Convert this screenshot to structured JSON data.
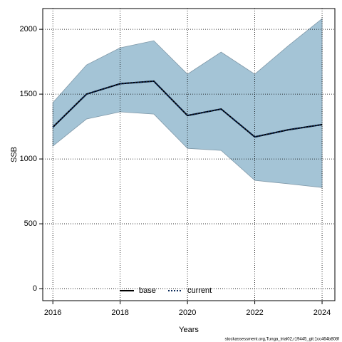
{
  "chart_data": {
    "type": "line",
    "x": [
      2016,
      2017,
      2018,
      2019,
      2020,
      2021,
      2022,
      2023,
      2024
    ],
    "series": [
      {
        "name": "base",
        "color": "#000000",
        "values": [
          1245,
          1500,
          1580,
          1600,
          1335,
          1385,
          1170,
          1225,
          1265
        ]
      },
      {
        "name": "current",
        "color": "#0b2a5a",
        "values": [
          1245,
          1500,
          1580,
          1600,
          1335,
          1385,
          1170,
          1225,
          1265
        ]
      }
    ],
    "interval": {
      "color": "#a4c4d6",
      "upper": [
        1434,
        1725,
        1857,
        1912,
        1654,
        1824,
        1654,
        1874,
        2082
      ],
      "lower": [
        1099,
        1308,
        1363,
        1346,
        1082,
        1066,
        835,
        808,
        780
      ]
    },
    "xlabel": "Years",
    "ylabel": "SSB",
    "xlim": [
      2015.7,
      2024.38
    ],
    "xticks": [
      2016,
      2018,
      2020,
      2022,
      2024
    ],
    "ylim": [
      -93,
      2160
    ],
    "yticks": [
      0,
      500,
      1000,
      1500,
      2000
    ],
    "grid": true,
    "legend": "bottom",
    "footnote": "stockassessment.org,Tunga_trial02,r19445_git:1cc464b808f"
  }
}
